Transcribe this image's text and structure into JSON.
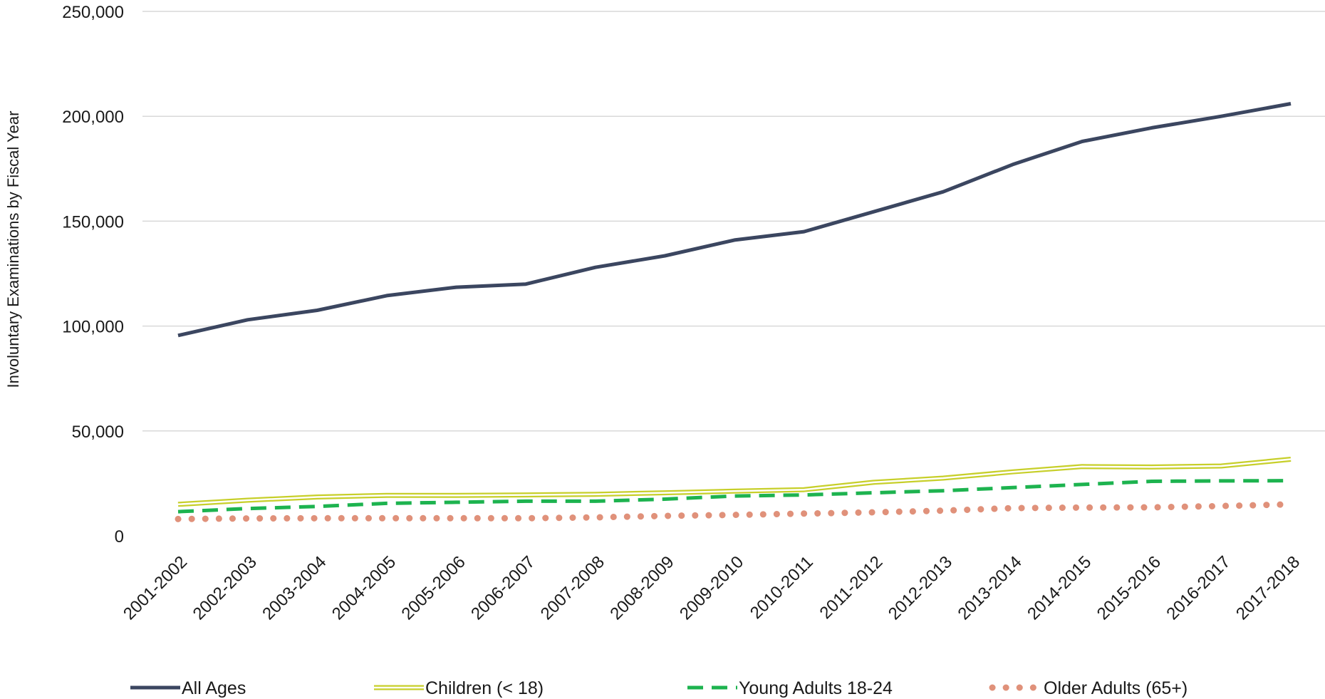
{
  "chart_data": {
    "type": "line",
    "title": "",
    "xlabel": "",
    "ylabel": "Involuntary Examinations by Fiscal Year",
    "ylim": [
      0,
      250000
    ],
    "yticks": [
      "0",
      "50,000",
      "100,000",
      "150,000",
      "200,000",
      "250,000"
    ],
    "ytick_values": [
      0,
      50000,
      100000,
      150000,
      200000,
      250000
    ],
    "grid": true,
    "legend_position": "bottom",
    "categories": [
      "2001-2002",
      "2002-2003",
      "2003-2004",
      "2004-2005",
      "2005-2006",
      "2006-2007",
      "2007-2008",
      "2008-2009",
      "2009-2010",
      "2010-2011",
      "2011-2012",
      "2012-2013",
      "2013-2014",
      "2014-2015",
      "2015-2016",
      "2016-2017",
      "2017-2018"
    ],
    "series": [
      {
        "name": "All Ages",
        "style": "solid",
        "color": "#3b4660",
        "values": [
          95500,
          103000,
          107500,
          114500,
          118500,
          120000,
          128000,
          133500,
          141000,
          145000,
          154500,
          164000,
          177000,
          188000,
          194500,
          200000,
          206000
        ]
      },
      {
        "name": "Children (< 18)",
        "style": "double",
        "color": "#c7cf2a",
        "values": [
          15000,
          17000,
          18500,
          19300,
          19300,
          19500,
          19800,
          20500,
          21300,
          22000,
          25500,
          27500,
          30500,
          33000,
          32800,
          33300,
          36500
        ]
      },
      {
        "name": "Young Adults 18-24",
        "style": "dashed",
        "color": "#1db34f",
        "values": [
          11500,
          13000,
          14000,
          15500,
          16000,
          16500,
          16500,
          17500,
          19000,
          19500,
          20500,
          21500,
          23000,
          24500,
          26000,
          26200,
          26300
        ]
      },
      {
        "name": "Older Adults (65+)",
        "style": "dotted",
        "color": "#e0917a",
        "values": [
          8000,
          8300,
          8400,
          8400,
          8400,
          8400,
          8800,
          9500,
          10000,
          10600,
          11200,
          12000,
          13200,
          13500,
          13600,
          14200,
          15000
        ]
      }
    ]
  }
}
